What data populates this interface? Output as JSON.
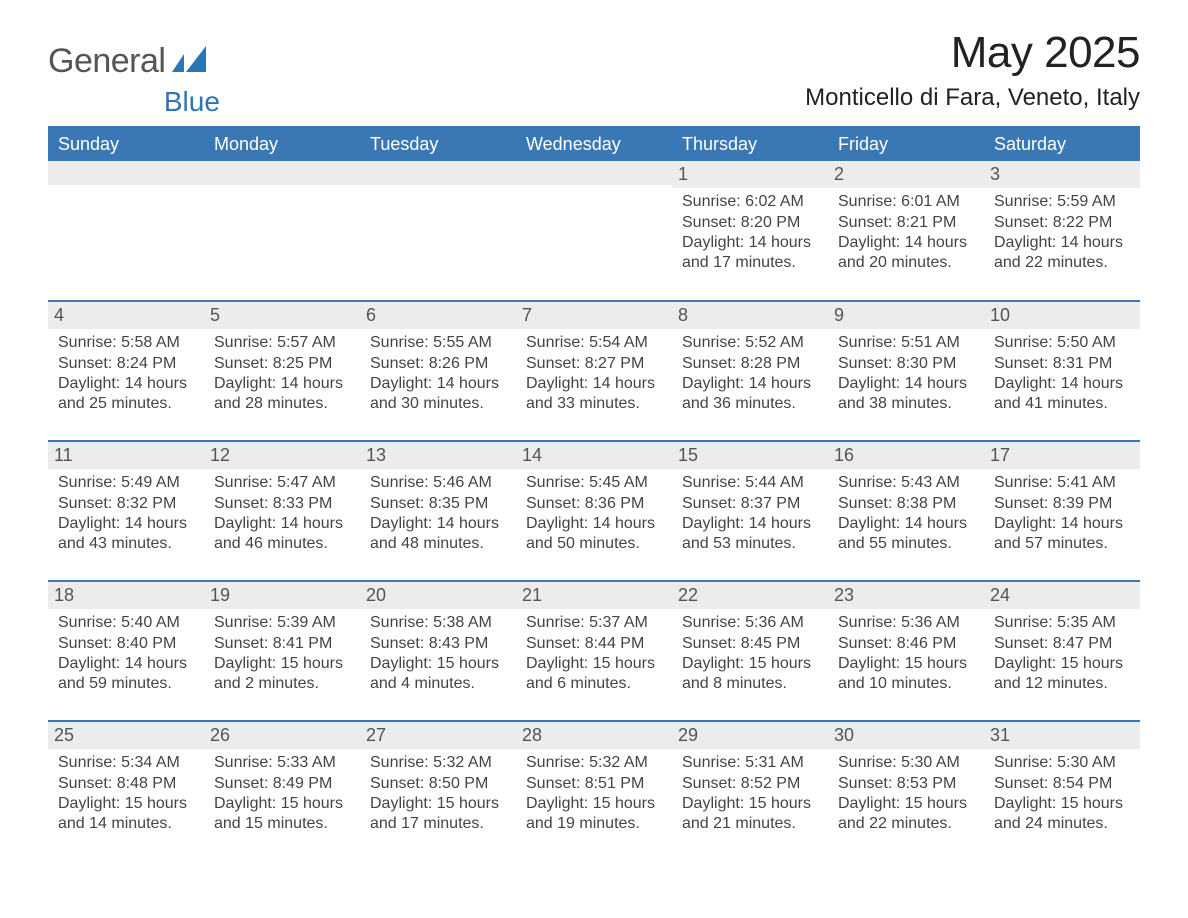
{
  "logo": {
    "word1": "General",
    "word2": "Blue",
    "word1_color": "#555555",
    "word2_color": "#2e75b6",
    "mark_color": "#2e75b6"
  },
  "title": "May 2025",
  "subtitle": "Monticello di Fara, Veneto, Italy",
  "colors": {
    "header_bg": "#3a78b5",
    "header_text": "#ffffff",
    "row_divider": "#3a78b5",
    "daynum_bg": "#ececec",
    "daynum_text": "#555555",
    "cell_text": "#444444",
    "page_bg": "#ffffff"
  },
  "calendar": {
    "type": "table",
    "columns": [
      "Sunday",
      "Monday",
      "Tuesday",
      "Wednesday",
      "Thursday",
      "Friday",
      "Saturday"
    ],
    "weeks": [
      [
        {
          "empty": true
        },
        {
          "empty": true
        },
        {
          "empty": true
        },
        {
          "empty": true
        },
        {
          "day": "1",
          "sunrise": "Sunrise: 6:02 AM",
          "sunset": "Sunset: 8:20 PM",
          "day1": "Daylight: 14 hours",
          "day2": "and 17 minutes."
        },
        {
          "day": "2",
          "sunrise": "Sunrise: 6:01 AM",
          "sunset": "Sunset: 8:21 PM",
          "day1": "Daylight: 14 hours",
          "day2": "and 20 minutes."
        },
        {
          "day": "3",
          "sunrise": "Sunrise: 5:59 AM",
          "sunset": "Sunset: 8:22 PM",
          "day1": "Daylight: 14 hours",
          "day2": "and 22 minutes."
        }
      ],
      [
        {
          "day": "4",
          "sunrise": "Sunrise: 5:58 AM",
          "sunset": "Sunset: 8:24 PM",
          "day1": "Daylight: 14 hours",
          "day2": "and 25 minutes."
        },
        {
          "day": "5",
          "sunrise": "Sunrise: 5:57 AM",
          "sunset": "Sunset: 8:25 PM",
          "day1": "Daylight: 14 hours",
          "day2": "and 28 minutes."
        },
        {
          "day": "6",
          "sunrise": "Sunrise: 5:55 AM",
          "sunset": "Sunset: 8:26 PM",
          "day1": "Daylight: 14 hours",
          "day2": "and 30 minutes."
        },
        {
          "day": "7",
          "sunrise": "Sunrise: 5:54 AM",
          "sunset": "Sunset: 8:27 PM",
          "day1": "Daylight: 14 hours",
          "day2": "and 33 minutes."
        },
        {
          "day": "8",
          "sunrise": "Sunrise: 5:52 AM",
          "sunset": "Sunset: 8:28 PM",
          "day1": "Daylight: 14 hours",
          "day2": "and 36 minutes."
        },
        {
          "day": "9",
          "sunrise": "Sunrise: 5:51 AM",
          "sunset": "Sunset: 8:30 PM",
          "day1": "Daylight: 14 hours",
          "day2": "and 38 minutes."
        },
        {
          "day": "10",
          "sunrise": "Sunrise: 5:50 AM",
          "sunset": "Sunset: 8:31 PM",
          "day1": "Daylight: 14 hours",
          "day2": "and 41 minutes."
        }
      ],
      [
        {
          "day": "11",
          "sunrise": "Sunrise: 5:49 AM",
          "sunset": "Sunset: 8:32 PM",
          "day1": "Daylight: 14 hours",
          "day2": "and 43 minutes."
        },
        {
          "day": "12",
          "sunrise": "Sunrise: 5:47 AM",
          "sunset": "Sunset: 8:33 PM",
          "day1": "Daylight: 14 hours",
          "day2": "and 46 minutes."
        },
        {
          "day": "13",
          "sunrise": "Sunrise: 5:46 AM",
          "sunset": "Sunset: 8:35 PM",
          "day1": "Daylight: 14 hours",
          "day2": "and 48 minutes."
        },
        {
          "day": "14",
          "sunrise": "Sunrise: 5:45 AM",
          "sunset": "Sunset: 8:36 PM",
          "day1": "Daylight: 14 hours",
          "day2": "and 50 minutes."
        },
        {
          "day": "15",
          "sunrise": "Sunrise: 5:44 AM",
          "sunset": "Sunset: 8:37 PM",
          "day1": "Daylight: 14 hours",
          "day2": "and 53 minutes."
        },
        {
          "day": "16",
          "sunrise": "Sunrise: 5:43 AM",
          "sunset": "Sunset: 8:38 PM",
          "day1": "Daylight: 14 hours",
          "day2": "and 55 minutes."
        },
        {
          "day": "17",
          "sunrise": "Sunrise: 5:41 AM",
          "sunset": "Sunset: 8:39 PM",
          "day1": "Daylight: 14 hours",
          "day2": "and 57 minutes."
        }
      ],
      [
        {
          "day": "18",
          "sunrise": "Sunrise: 5:40 AM",
          "sunset": "Sunset: 8:40 PM",
          "day1": "Daylight: 14 hours",
          "day2": "and 59 minutes."
        },
        {
          "day": "19",
          "sunrise": "Sunrise: 5:39 AM",
          "sunset": "Sunset: 8:41 PM",
          "day1": "Daylight: 15 hours",
          "day2": "and 2 minutes."
        },
        {
          "day": "20",
          "sunrise": "Sunrise: 5:38 AM",
          "sunset": "Sunset: 8:43 PM",
          "day1": "Daylight: 15 hours",
          "day2": "and 4 minutes."
        },
        {
          "day": "21",
          "sunrise": "Sunrise: 5:37 AM",
          "sunset": "Sunset: 8:44 PM",
          "day1": "Daylight: 15 hours",
          "day2": "and 6 minutes."
        },
        {
          "day": "22",
          "sunrise": "Sunrise: 5:36 AM",
          "sunset": "Sunset: 8:45 PM",
          "day1": "Daylight: 15 hours",
          "day2": "and 8 minutes."
        },
        {
          "day": "23",
          "sunrise": "Sunrise: 5:36 AM",
          "sunset": "Sunset: 8:46 PM",
          "day1": "Daylight: 15 hours",
          "day2": "and 10 minutes."
        },
        {
          "day": "24",
          "sunrise": "Sunrise: 5:35 AM",
          "sunset": "Sunset: 8:47 PM",
          "day1": "Daylight: 15 hours",
          "day2": "and 12 minutes."
        }
      ],
      [
        {
          "day": "25",
          "sunrise": "Sunrise: 5:34 AM",
          "sunset": "Sunset: 8:48 PM",
          "day1": "Daylight: 15 hours",
          "day2": "and 14 minutes."
        },
        {
          "day": "26",
          "sunrise": "Sunrise: 5:33 AM",
          "sunset": "Sunset: 8:49 PM",
          "day1": "Daylight: 15 hours",
          "day2": "and 15 minutes."
        },
        {
          "day": "27",
          "sunrise": "Sunrise: 5:32 AM",
          "sunset": "Sunset: 8:50 PM",
          "day1": "Daylight: 15 hours",
          "day2": "and 17 minutes."
        },
        {
          "day": "28",
          "sunrise": "Sunrise: 5:32 AM",
          "sunset": "Sunset: 8:51 PM",
          "day1": "Daylight: 15 hours",
          "day2": "and 19 minutes."
        },
        {
          "day": "29",
          "sunrise": "Sunrise: 5:31 AM",
          "sunset": "Sunset: 8:52 PM",
          "day1": "Daylight: 15 hours",
          "day2": "and 21 minutes."
        },
        {
          "day": "30",
          "sunrise": "Sunrise: 5:30 AM",
          "sunset": "Sunset: 8:53 PM",
          "day1": "Daylight: 15 hours",
          "day2": "and 22 minutes."
        },
        {
          "day": "31",
          "sunrise": "Sunrise: 5:30 AM",
          "sunset": "Sunset: 8:54 PM",
          "day1": "Daylight: 15 hours",
          "day2": "and 24 minutes."
        }
      ]
    ]
  }
}
